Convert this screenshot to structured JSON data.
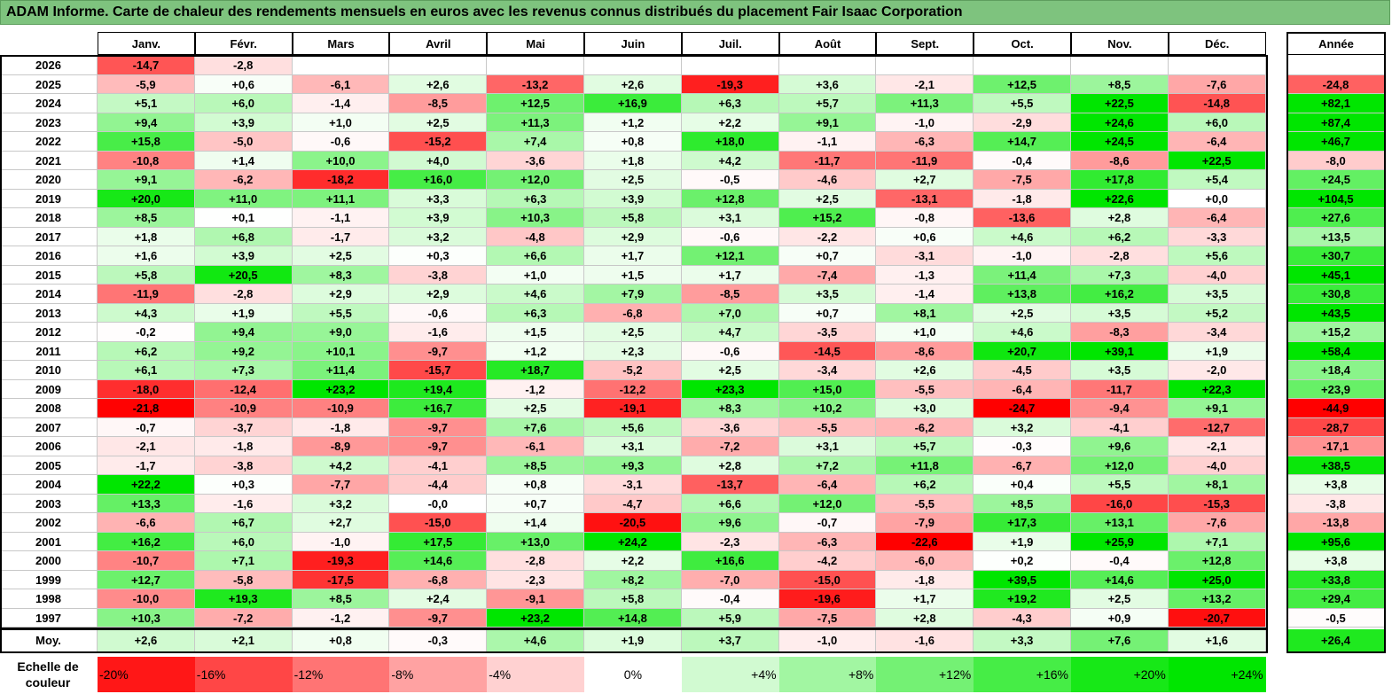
{
  "title": "ADAM Informe. Carte de chaleur des rendements mensuels en euros avec les revenus connus distribués du placement Fair Isaac Corporation",
  "chart_data": {
    "type": "heatmap",
    "title": "ADAM Informe. Carte de chaleur des rendements mensuels en euros avec les revenus connus distribués du placement Fair Isaac Corporation",
    "columns": [
      "Janv.",
      "Févr.",
      "Mars",
      "Avril",
      "Mai",
      "Juin",
      "Juil.",
      "Août",
      "Sept.",
      "Oct.",
      "Nov.",
      "Déc."
    ],
    "year_column": "Année",
    "rows": [
      {
        "year": "2026",
        "values": [
          "-14,7",
          "-2,8",
          "",
          "",
          "",
          "",
          "",
          "",
          "",
          "",
          "",
          ""
        ],
        "annual": ""
      },
      {
        "year": "2025",
        "values": [
          "-5,9",
          "+0,6",
          "-6,1",
          "+2,6",
          "-13,2",
          "+2,6",
          "-19,3",
          "+3,6",
          "-2,1",
          "+12,5",
          "+8,5",
          "-7,6"
        ],
        "annual": "-24,8"
      },
      {
        "year": "2024",
        "values": [
          "+5,1",
          "+6,0",
          "-1,4",
          "-8,5",
          "+12,5",
          "+16,9",
          "+6,3",
          "+5,7",
          "+11,3",
          "+5,5",
          "+22,5",
          "-14,8"
        ],
        "annual": "+82,1"
      },
      {
        "year": "2023",
        "values": [
          "+9,4",
          "+3,9",
          "+1,0",
          "+2,5",
          "+11,3",
          "+1,2",
          "+2,2",
          "+9,1",
          "-1,0",
          "-2,9",
          "+24,6",
          "+6,0"
        ],
        "annual": "+87,4"
      },
      {
        "year": "2022",
        "values": [
          "+15,8",
          "-5,0",
          "-0,6",
          "-15,2",
          "+7,4",
          "+0,8",
          "+18,0",
          "-1,1",
          "-6,3",
          "+14,7",
          "+24,5",
          "-6,4"
        ],
        "annual": "+46,7"
      },
      {
        "year": "2021",
        "values": [
          "-10,8",
          "+1,4",
          "+10,0",
          "+4,0",
          "-3,6",
          "+1,8",
          "+4,2",
          "-11,7",
          "-11,9",
          "-0,4",
          "-8,6",
          "+22,5"
        ],
        "annual": "-8,0"
      },
      {
        "year": "2020",
        "values": [
          "+9,1",
          "-6,2",
          "-18,2",
          "+16,0",
          "+12,0",
          "+2,5",
          "-0,5",
          "-4,6",
          "+2,7",
          "-7,5",
          "+17,8",
          "+5,4"
        ],
        "annual": "+24,5"
      },
      {
        "year": "2019",
        "values": [
          "+20,0",
          "+11,0",
          "+11,1",
          "+3,3",
          "+6,3",
          "+3,9",
          "+12,8",
          "+2,5",
          "-13,1",
          "-1,8",
          "+22,6",
          "+0,0"
        ],
        "annual": "+104,5"
      },
      {
        "year": "2018",
        "values": [
          "+8,5",
          "+0,1",
          "-1,1",
          "+3,9",
          "+10,3",
          "+5,8",
          "+3,1",
          "+15,2",
          "-0,8",
          "-13,6",
          "+2,8",
          "-6,4"
        ],
        "annual": "+27,6"
      },
      {
        "year": "2017",
        "values": [
          "+1,8",
          "+6,8",
          "-1,7",
          "+3,2",
          "-4,8",
          "+2,9",
          "-0,6",
          "-2,2",
          "+0,6",
          "+4,6",
          "+6,2",
          "-3,3"
        ],
        "annual": "+13,5"
      },
      {
        "year": "2016",
        "values": [
          "+1,6",
          "+3,9",
          "+2,5",
          "+0,3",
          "+6,6",
          "+1,7",
          "+12,1",
          "+0,7",
          "-3,1",
          "-1,0",
          "-2,8",
          "+5,6"
        ],
        "annual": "+30,7"
      },
      {
        "year": "2015",
        "values": [
          "+5,8",
          "+20,5",
          "+8,3",
          "-3,8",
          "+1,0",
          "+1,5",
          "+1,7",
          "-7,4",
          "-1,3",
          "+11,4",
          "+7,3",
          "-4,0"
        ],
        "annual": "+45,1"
      },
      {
        "year": "2014",
        "values": [
          "-11,9",
          "-2,8",
          "+2,9",
          "+2,9",
          "+4,6",
          "+7,9",
          "-8,5",
          "+3,5",
          "-1,4",
          "+13,8",
          "+16,2",
          "+3,5"
        ],
        "annual": "+30,8"
      },
      {
        "year": "2013",
        "values": [
          "+4,3",
          "+1,9",
          "+5,5",
          "-0,6",
          "+6,3",
          "-6,8",
          "+7,0",
          "+0,7",
          "+8,1",
          "+2,5",
          "+3,5",
          "+5,2"
        ],
        "annual": "+43,5"
      },
      {
        "year": "2012",
        "values": [
          "-0,2",
          "+9,4",
          "+9,0",
          "-1,6",
          "+1,5",
          "+2,5",
          "+4,7",
          "-3,5",
          "+1,0",
          "+4,6",
          "-8,3",
          "-3,4"
        ],
        "annual": "+15,2"
      },
      {
        "year": "2011",
        "values": [
          "+6,2",
          "+9,2",
          "+10,1",
          "-9,7",
          "+1,2",
          "+2,3",
          "-0,6",
          "-14,5",
          "-8,6",
          "+20,7",
          "+39,1",
          "+1,9"
        ],
        "annual": "+58,4"
      },
      {
        "year": "2010",
        "values": [
          "+6,1",
          "+7,3",
          "+11,4",
          "-15,7",
          "+18,7",
          "-5,2",
          "+2,5",
          "-3,4",
          "+2,6",
          "-4,5",
          "+3,5",
          "-2,0"
        ],
        "annual": "+18,4"
      },
      {
        "year": "2009",
        "values": [
          "-18,0",
          "-12,4",
          "+23,2",
          "+19,4",
          "-1,2",
          "-12,2",
          "+23,3",
          "+15,0",
          "-5,5",
          "-6,4",
          "-11,7",
          "+22,3"
        ],
        "annual": "+23,9"
      },
      {
        "year": "2008",
        "values": [
          "-21,8",
          "-10,9",
          "-10,9",
          "+16,7",
          "+2,5",
          "-19,1",
          "+8,3",
          "+10,2",
          "+3,0",
          "-24,7",
          "-9,4",
          "+9,1"
        ],
        "annual": "-44,9"
      },
      {
        "year": "2007",
        "values": [
          "-0,7",
          "-3,7",
          "-1,8",
          "-9,7",
          "+7,6",
          "+5,6",
          "-3,6",
          "-5,5",
          "-6,2",
          "+3,2",
          "-4,1",
          "-12,7"
        ],
        "annual": "-28,7"
      },
      {
        "year": "2006",
        "values": [
          "-2,1",
          "-1,8",
          "-8,9",
          "-9,7",
          "-6,1",
          "+3,1",
          "-7,2",
          "+3,1",
          "+5,7",
          "-0,3",
          "+9,6",
          "-2,1"
        ],
        "annual": "-17,1"
      },
      {
        "year": "2005",
        "values": [
          "-1,7",
          "-3,8",
          "+4,2",
          "-4,1",
          "+8,5",
          "+9,3",
          "+2,8",
          "+7,2",
          "+11,8",
          "-6,7",
          "+12,0",
          "-4,0"
        ],
        "annual": "+38,5"
      },
      {
        "year": "2004",
        "values": [
          "+22,2",
          "+0,3",
          "-7,7",
          "-4,4",
          "+0,8",
          "-3,1",
          "-13,7",
          "-6,4",
          "+6,2",
          "+0,4",
          "+5,5",
          "+8,1"
        ],
        "annual": "+3,8"
      },
      {
        "year": "2003",
        "values": [
          "+13,3",
          "-1,6",
          "+3,2",
          "-0,0",
          "+0,7",
          "-4,7",
          "+6,6",
          "+12,0",
          "-5,5",
          "+8,5",
          "-16,0",
          "-15,3"
        ],
        "annual": "-3,8"
      },
      {
        "year": "2002",
        "values": [
          "-6,6",
          "+6,7",
          "+2,7",
          "-15,0",
          "+1,4",
          "-20,5",
          "+9,6",
          "-0,7",
          "-7,9",
          "+17,3",
          "+13,1",
          "-7,6"
        ],
        "annual": "-13,8"
      },
      {
        "year": "2001",
        "values": [
          "+16,2",
          "+6,0",
          "-1,0",
          "+17,5",
          "+13,0",
          "+24,2",
          "-2,3",
          "-6,3",
          "-22,6",
          "+1,9",
          "+25,9",
          "+7,1"
        ],
        "annual": "+95,6"
      },
      {
        "year": "2000",
        "values": [
          "-10,7",
          "+7,1",
          "-19,3",
          "+14,6",
          "-2,8",
          "+2,2",
          "+16,6",
          "-4,2",
          "-6,0",
          "+0,2",
          "-0,4",
          "+12,8"
        ],
        "annual": "+3,8"
      },
      {
        "year": "1999",
        "values": [
          "+12,7",
          "-5,8",
          "-17,5",
          "-6,8",
          "-2,3",
          "+8,2",
          "-7,0",
          "-15,0",
          "-1,8",
          "+39,5",
          "+14,6",
          "+25,0"
        ],
        "annual": "+33,8"
      },
      {
        "year": "1998",
        "values": [
          "-10,0",
          "+19,3",
          "+8,5",
          "+2,4",
          "-9,1",
          "+5,8",
          "-0,4",
          "-19,6",
          "+1,7",
          "+19,2",
          "+2,5",
          "+13,2"
        ],
        "annual": "+29,4"
      },
      {
        "year": "1997",
        "values": [
          "+10,3",
          "-7,2",
          "-1,2",
          "-9,7",
          "+23,2",
          "+14,8",
          "+5,9",
          "-7,5",
          "+2,8",
          "-4,3",
          "+0,9",
          "-20,7"
        ],
        "annual": "-0,5"
      }
    ],
    "average": {
      "label": "Moy.",
      "values": [
        "+2,6",
        "+2,1",
        "+0,8",
        "-0,3",
        "+4,6",
        "+1,9",
        "+3,7",
        "-1,0",
        "-1,6",
        "+3,3",
        "+7,6",
        "+1,6"
      ],
      "annual": "+26,4"
    },
    "legend": {
      "label": "Echelle de couleur",
      "steps": [
        "-20%",
        "-16%",
        "-12%",
        "-8%",
        "-4%",
        "0%",
        "+4%",
        "+8%",
        "+12%",
        "+16%",
        "+20%",
        "+24%"
      ]
    },
    "colors": {
      "negative": "#ff0000",
      "neutral": "#ffffff",
      "positive": "#00e600",
      "title_bg": "#7ec37e"
    }
  }
}
